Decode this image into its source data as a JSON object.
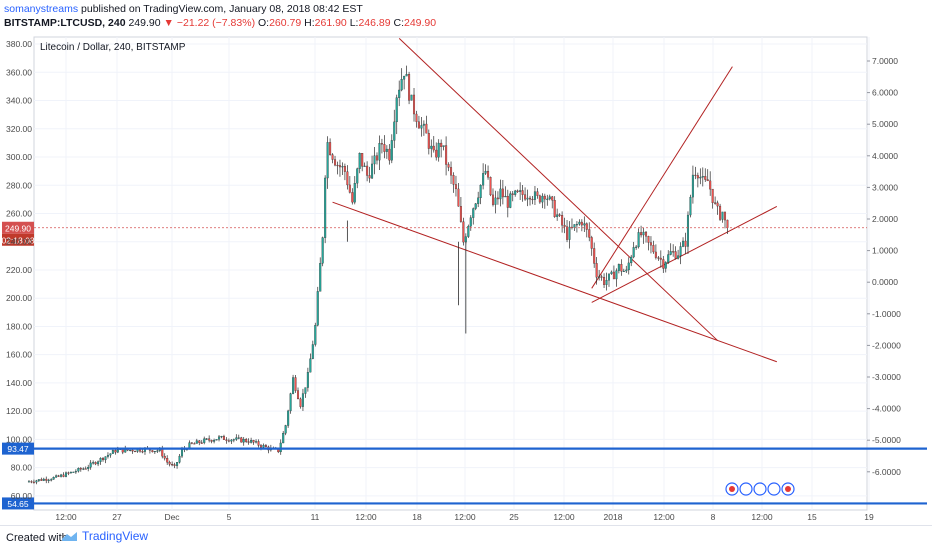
{
  "header": {
    "author": "somanystreams",
    "published": "published on TradingView.com, January 08, 2018 08:42 EST",
    "symbol": "BITSTAMP:LTCUSD, 240",
    "last": "249.90",
    "arrow": "▼",
    "change": "−21.22 (−7.83%)",
    "o_label": "O:",
    "o_val": "260.79",
    "h_label": "H:",
    "h_val": "261.90",
    "l_label": "L:",
    "l_val": "246.89",
    "c_label": "C:",
    "c_val": "249.90"
  },
  "footer": {
    "created_with": "Created with",
    "brand": "TradingView"
  },
  "colors": {
    "up": "#26a69a",
    "down": "#ef5350",
    "trend": "#b22222",
    "hline": "#1e63d0",
    "price": "#d45050"
  },
  "chart_data": {
    "type": "candlestick",
    "title": "Litecoin / Dollar, 240, BITSTAMP",
    "ylim": [
      50,
      385
    ],
    "yticks": [
      "380.00",
      "360.00",
      "340.00",
      "320.00",
      "300.00",
      "280.00",
      "260.00",
      "240.00",
      "220.00",
      "200.00",
      "180.00",
      "160.00",
      "140.00",
      "120.00",
      "100.00",
      "80.00",
      "60.00"
    ],
    "y2ticks": [
      "7.0000",
      "6.0000",
      "5.0000",
      "4.0000",
      "3.0000",
      "2.0000",
      "1.0000",
      "0.0000",
      "-1.0000",
      "-2.0000",
      "-3.0000",
      "-4.0000",
      "-5.0000",
      "-6.0000"
    ],
    "xticks": [
      "12:00",
      "27",
      "Dec",
      "5",
      "11",
      "12:00",
      "18",
      "12:00",
      "25",
      "12:00",
      "2018",
      "12:00",
      "8",
      "12:00",
      "15",
      "19"
    ],
    "price_line": {
      "value": 249.9,
      "label": "249.90",
      "countdown": "02:18:08"
    },
    "hlines": [
      {
        "value": 93.47,
        "label": "93.47"
      },
      {
        "value": 54.65,
        "label": "54.65"
      }
    ],
    "trendlines": [
      {
        "from": [
          "Dec 17",
          384
        ],
        "to": [
          "Jan 07 12:00",
          170
        ]
      },
      {
        "from": [
          "Dec 12 12:00",
          268
        ],
        "to": [
          "Jan 11 12:00",
          155
        ]
      },
      {
        "from": [
          "Dec 30",
          207
        ],
        "to": [
          "Jan 08 12:00",
          364
        ]
      },
      {
        "from": [
          "Dec 30",
          197
        ],
        "to": [
          "Jan 11 12:00",
          265
        ]
      }
    ],
    "price_path": [
      [
        "Nov 22",
        70
      ],
      [
        "Nov 24",
        73
      ],
      [
        "Nov 26",
        80
      ],
      [
        "Nov 27",
        86
      ],
      [
        "Nov 28",
        92
      ],
      [
        "Nov 30",
        93
      ],
      [
        "Dec 01",
        92
      ],
      [
        "Dec 01 12:00",
        84
      ],
      [
        "Dec 02",
        80
      ],
      [
        "Dec 02 12:00",
        92
      ],
      [
        "Dec 03",
        96
      ],
      [
        "Dec 04",
        99
      ],
      [
        "Dec 05",
        101
      ],
      [
        "Dec 06",
        100
      ],
      [
        "Dec 07",
        99
      ],
      [
        "Dec 08",
        95
      ],
      [
        "Dec 08 12:00",
        93
      ],
      [
        "Dec 09",
        92
      ],
      [
        "Dec 09 12:00",
        110
      ],
      [
        "Dec 10",
        143
      ],
      [
        "Dec 10 12:00",
        125
      ],
      [
        "Dec 11",
        145
      ],
      [
        "Dec 11 12:00",
        180
      ],
      [
        "Dec 12",
        245
      ],
      [
        "Dec 12 06:00",
        312
      ],
      [
        "Dec 12 18:00",
        300
      ],
      [
        "Dec 13",
        295
      ],
      [
        "Dec 13 12:00",
        290
      ],
      [
        "Dec 14",
        268
      ],
      [
        "Dec 14 12:00",
        300
      ],
      [
        "Dec 15",
        287
      ],
      [
        "Dec 15 12:00",
        296
      ],
      [
        "Dec 16",
        310
      ],
      [
        "Dec 16 12:00",
        302
      ],
      [
        "Dec 17",
        345
      ],
      [
        "Dec 17 12:00",
        362
      ],
      [
        "Dec 18",
        338
      ],
      [
        "Dec 18 12:00",
        325
      ],
      [
        "Dec 19",
        315
      ],
      [
        "Dec 19 12:00",
        300
      ],
      [
        "Dec 20",
        310
      ],
      [
        "Dec 20 12:00",
        290
      ],
      [
        "Dec 21",
        275
      ],
      [
        "Dec 21 12:00",
        240
      ],
      [
        "Dec 22",
        260
      ],
      [
        "Dec 22 12:00",
        275
      ],
      [
        "Dec 23",
        290
      ],
      [
        "Dec 23 12:00",
        265
      ],
      [
        "Dec 24",
        275
      ],
      [
        "Dec 24 12:00",
        268
      ],
      [
        "Dec 25",
        272
      ],
      [
        "Dec 26",
        275
      ],
      [
        "Dec 26 12:00",
        270
      ],
      [
        "Dec 27",
        275
      ],
      [
        "Dec 28",
        255
      ],
      [
        "Dec 28 12:00",
        245
      ],
      [
        "Dec 29",
        250
      ],
      [
        "Dec 29 12:00",
        255
      ],
      [
        "Dec 30",
        243
      ],
      [
        "Dec 30 12:00",
        218
      ],
      [
        "Dec 31",
        212
      ],
      [
        "Dec 31 12:00",
        215
      ],
      [
        "Jan 01",
        222
      ],
      [
        "Jan 01 12:00",
        218
      ],
      [
        "Jan 02",
        238
      ],
      [
        "Jan 02 12:00",
        245
      ],
      [
        "Jan 03",
        238
      ],
      [
        "Jan 03 12:00",
        232
      ],
      [
        "Jan 04",
        225
      ],
      [
        "Jan 04 12:00",
        232
      ],
      [
        "Jan 05",
        232
      ],
      [
        "Jan 05 12:00",
        240
      ],
      [
        "Jan 06",
        288
      ],
      [
        "Jan 06 06:00",
        292
      ],
      [
        "Jan 06 18:00",
        280
      ],
      [
        "Jan 07",
        283
      ],
      [
        "Jan 07 06:00",
        275
      ],
      [
        "Jan 07 12:00",
        265
      ],
      [
        "Jan 07 18:00",
        259
      ],
      [
        "Jan 08",
        261
      ],
      [
        "Jan 08 06:00",
        249.9
      ]
    ]
  }
}
